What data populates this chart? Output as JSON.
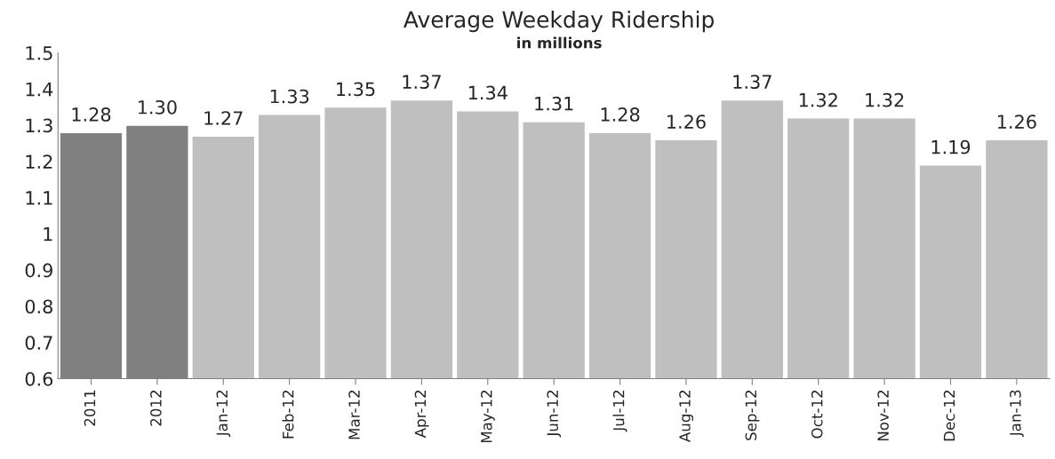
{
  "chart_data": {
    "type": "bar",
    "title": "Average Weekday Ridership",
    "subtitle": "in millions",
    "categories": [
      "2011",
      "2012",
      "Jan-12",
      "Feb-12",
      "Mar-12",
      "Apr-12",
      "May-12",
      "Jun-12",
      "Jul-12",
      "Aug-12",
      "Sep-12",
      "Oct-12",
      "Nov-12",
      "Dec-12",
      "Jan-13"
    ],
    "values": [
      1.28,
      1.3,
      1.27,
      1.33,
      1.35,
      1.37,
      1.34,
      1.31,
      1.28,
      1.26,
      1.37,
      1.32,
      1.32,
      1.19,
      1.26
    ],
    "value_labels": [
      "1.28",
      "1.30",
      "1.27",
      "1.33",
      "1.35",
      "1.37",
      "1.34",
      "1.31",
      "1.28",
      "1.26",
      "1.37",
      "1.32",
      "1.32",
      "1.19",
      "1.26"
    ],
    "colors": [
      "#808080",
      "#808080",
      "#bfbfbf",
      "#bfbfbf",
      "#bfbfbf",
      "#bfbfbf",
      "#bfbfbf",
      "#bfbfbf",
      "#bfbfbf",
      "#bfbfbf",
      "#bfbfbf",
      "#bfbfbf",
      "#bfbfbf",
      "#bfbfbf",
      "#bfbfbf"
    ],
    "ylim": [
      0.6,
      1.5
    ],
    "yticks": [
      0.6,
      0.7,
      0.8,
      0.9,
      1,
      1.1,
      1.2,
      1.3,
      1.4,
      1.5
    ],
    "grid": false,
    "legend": false
  }
}
